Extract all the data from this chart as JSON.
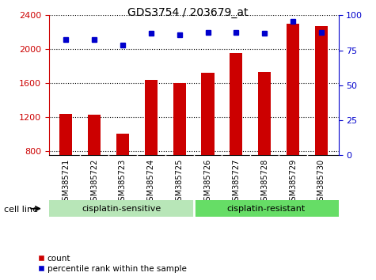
{
  "title": "GDS3754 / 203679_at",
  "samples": [
    "GSM385721",
    "GSM385722",
    "GSM385723",
    "GSM385724",
    "GSM385725",
    "GSM385726",
    "GSM385727",
    "GSM385728",
    "GSM385729",
    "GSM385730"
  ],
  "counts": [
    1240,
    1230,
    1010,
    1640,
    1600,
    1720,
    1960,
    1730,
    2300,
    2270
  ],
  "percentile_ranks": [
    83,
    83,
    79,
    87,
    86,
    88,
    88,
    87,
    96,
    88
  ],
  "ylim_left": [
    750,
    2400
  ],
  "ylim_right": [
    0,
    100
  ],
  "yticks_left": [
    800,
    1200,
    1600,
    2000,
    2400
  ],
  "yticks_right": [
    0,
    25,
    50,
    75,
    100
  ],
  "bar_color": "#cc0000",
  "dot_color": "#0000cc",
  "grid_color": "#000000",
  "cisplatin_sensitive_count": 5,
  "cisplatin_resistant_count": 5,
  "cell_line_label": "cell line",
  "group_labels": [
    "cisplatin-sensitive",
    "cisplatin-resistant"
  ],
  "legend_count_label": "count",
  "legend_pct_label": "percentile rank within the sample",
  "bar_width": 0.45,
  "xtick_label_fontsize": 7,
  "ytick_label_fontsize": 8,
  "green_sensitive": "#b8e6b8",
  "green_resistant": "#66dd66",
  "gray_xtick_bg": "#d0d0d0"
}
